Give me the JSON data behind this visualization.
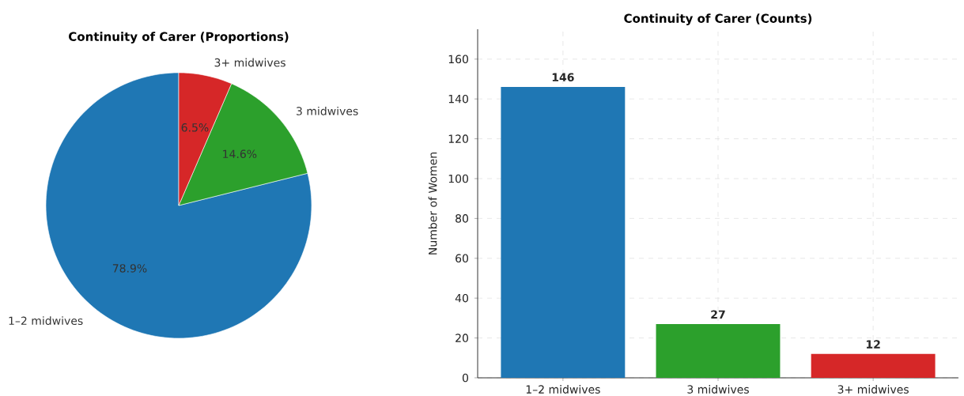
{
  "chart_data": [
    {
      "type": "pie",
      "title": "Continuity of Carer (Proportions)",
      "categories": [
        "1–2 midwives",
        "3 midwives",
        "3+ midwives"
      ],
      "values": [
        78.9,
        14.6,
        6.5
      ],
      "colors": [
        "#1f77b4",
        "#2ca02c",
        "#d62728"
      ],
      "value_labels": [
        "78.9%",
        "14.6%",
        "6.5%"
      ]
    },
    {
      "type": "bar",
      "title": "Continuity of Carer (Counts)",
      "ylabel": "Number of Women",
      "categories": [
        "1–2 midwives",
        "3 midwives",
        "3+ midwives"
      ],
      "values": [
        146,
        27,
        12
      ],
      "colors": [
        "#1f77b4",
        "#2ca02c",
        "#d62728"
      ],
      "ylim": [
        0,
        175
      ],
      "yticks": [
        0,
        20,
        40,
        60,
        80,
        100,
        120,
        140,
        160
      ],
      "grid": true,
      "data_labels": true
    }
  ]
}
